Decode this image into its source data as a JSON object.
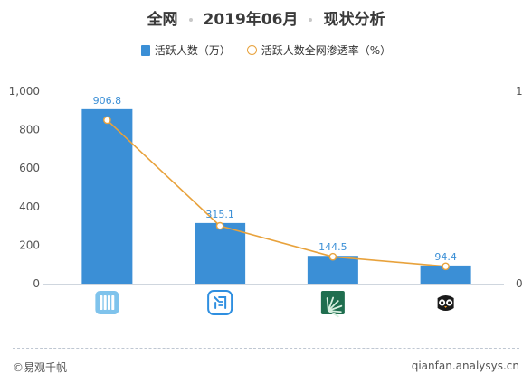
{
  "title": {
    "part1": "全网",
    "part2": "2019年06月",
    "part3": "现状分析"
  },
  "legend": {
    "bar_label": "活跃人数（万）",
    "line_label": "活跃人数全网渗透率（%）"
  },
  "footer": {
    "left": "©易观千帆",
    "right": "qianfan.analysys.cn"
  },
  "colors": {
    "bar": "#3b8fd6",
    "line": "#e8a23c",
    "value_label": "#3b8fd6"
  },
  "chart_data": {
    "type": "bar",
    "categories": [
      "app-icon-1",
      "app-icon-2",
      "app-icon-3",
      "app-icon-4"
    ],
    "series": [
      {
        "name": "活跃人数（万）",
        "type": "bar",
        "axis": "left",
        "values": [
          906.8,
          315.1,
          144.5,
          94.4
        ]
      },
      {
        "name": "活跃人数全网渗透率（%）",
        "type": "line",
        "axis": "right",
        "values": [
          0.85,
          0.3,
          0.14,
          0.09
        ]
      }
    ],
    "y_left": {
      "ylim": [
        0,
        1000
      ],
      "ticks": [
        0,
        200,
        400,
        600,
        800,
        1000
      ],
      "tick_labels": [
        "0",
        "200",
        "400",
        "600",
        "800",
        "1,000"
      ]
    },
    "y_right": {
      "ylim": [
        0,
        1
      ],
      "ticks": [
        0,
        1
      ],
      "tick_labels": [
        "0",
        "1"
      ]
    },
    "icons": [
      "grid-app-icon",
      "text-app-icon",
      "leaf-app-icon",
      "owl-app-icon"
    ],
    "grid": false
  }
}
